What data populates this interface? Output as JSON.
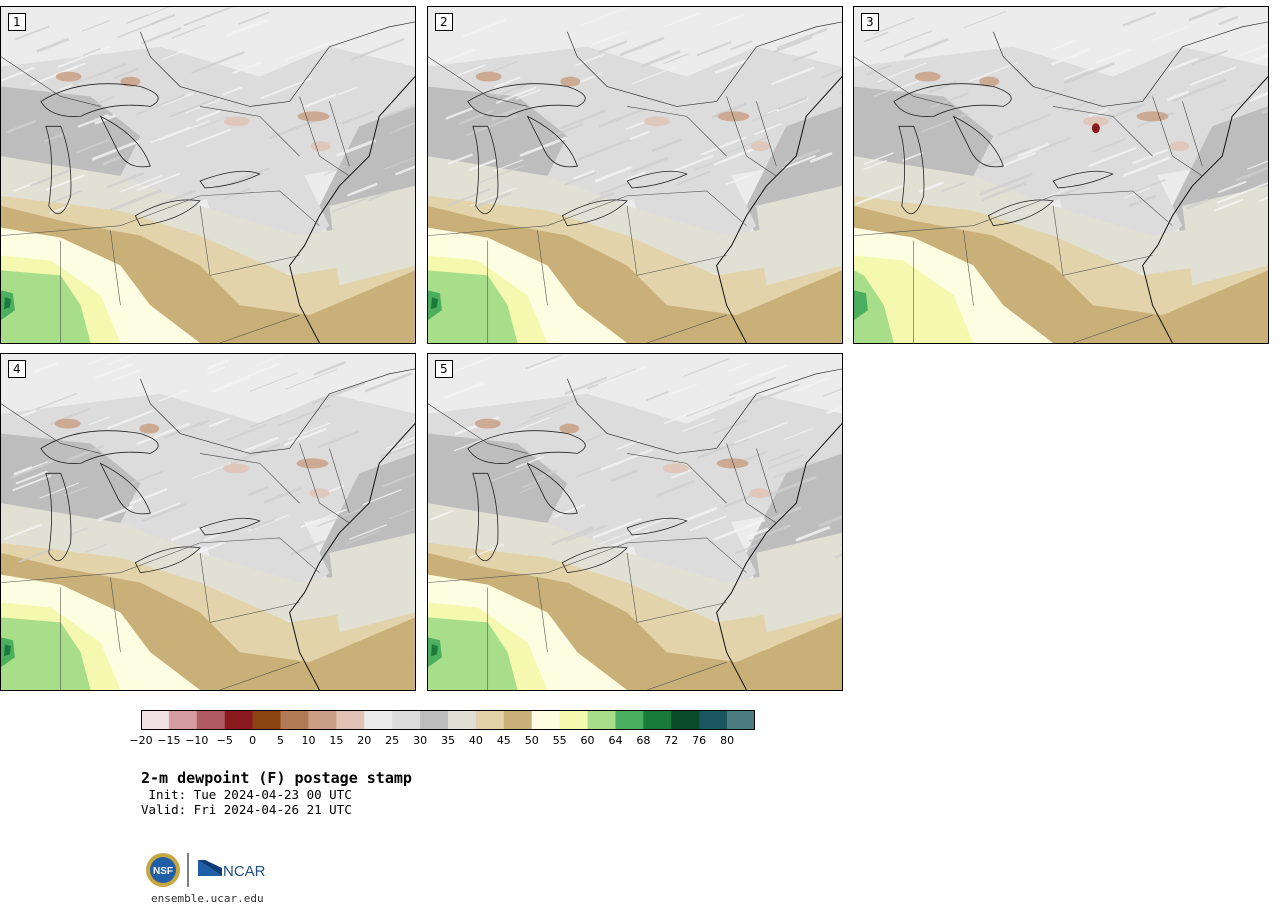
{
  "panels": [
    {
      "label": "1",
      "variant": 0
    },
    {
      "label": "2",
      "variant": 1
    },
    {
      "label": "3",
      "variant": 2
    },
    {
      "label": "4",
      "variant": 3
    },
    {
      "label": "5",
      "variant": 4
    }
  ],
  "colorbar": {
    "colors": [
      "#f1e3e3",
      "#d49ba0",
      "#b05a62",
      "#8b1a1f",
      "#8b4513",
      "#b07a55",
      "#c9a085",
      "#e0c3b5",
      "#ececec",
      "#dcdcdc",
      "#bdbdbd",
      "#e0e0d4",
      "#e3d3aa",
      "#c9b078",
      "#fdfde1",
      "#f5f9b0",
      "#a8dd8a",
      "#4caf5f",
      "#1a7a3a",
      "#0a4a2a",
      "#1a5560",
      "#4d7c80"
    ],
    "tick_labels": [
      "−20",
      "−15",
      "−10",
      "−5",
      "0",
      "5",
      "10",
      "15",
      "20",
      "25",
      "30",
      "35",
      "40",
      "45",
      "50",
      "55",
      "60",
      "64",
      "68",
      "72",
      "76",
      "80"
    ]
  },
  "title": "2-m dewpoint (F) postage stamp",
  "init": " Init: Tue 2024-04-23 00 UTC",
  "valid": "Valid: Fri 2024-04-26 21 UTC",
  "logos": {
    "nsf": "NSF",
    "ncar": "NCAR"
  },
  "url": "ensemble.ucar.edu"
}
